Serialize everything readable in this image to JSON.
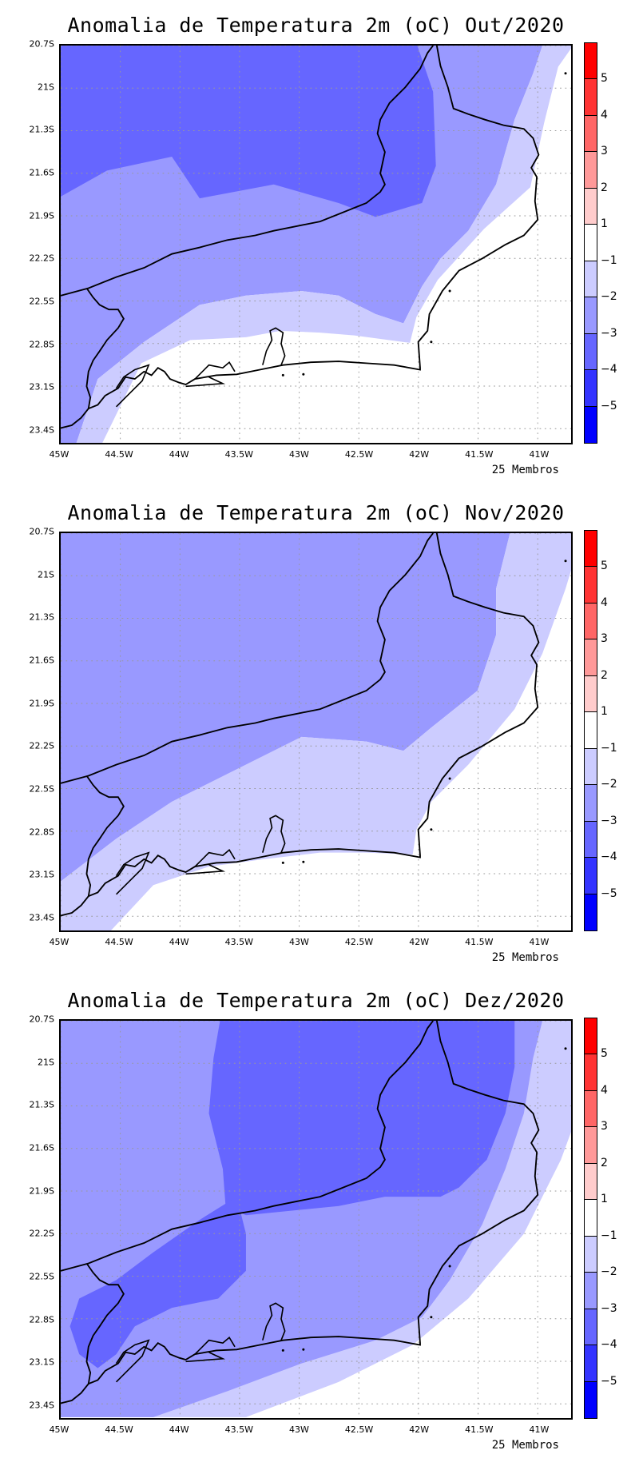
{
  "panels": [
    {
      "title": "Anomalia de Temperatura 2m (oC) Out/2020",
      "footer": "25 Membros",
      "month": "Out"
    },
    {
      "title": "Anomalia de Temperatura 2m (oC) Nov/2020",
      "footer": "25 Membros",
      "month": "Nov"
    },
    {
      "title": "Anomalia de Temperatura 2m (oC) Dez/2020",
      "footer": "25 Membros",
      "month": "Dez"
    }
  ],
  "axes": {
    "lon_ticks": [
      "45W",
      "44.5W",
      "44W",
      "43.5W",
      "43W",
      "42.5W",
      "42W",
      "41.5W",
      "41W"
    ],
    "lon_values": [
      -45,
      -44.5,
      -44,
      -43.5,
      -43,
      -42.5,
      -42,
      -41.5,
      -41
    ],
    "lat_ticks": [
      "20.7S",
      "21S",
      "21.3S",
      "21.6S",
      "21.9S",
      "22.2S",
      "22.5S",
      "22.8S",
      "23.1S",
      "23.4S"
    ],
    "lat_values": [
      -20.7,
      -21,
      -21.3,
      -21.6,
      -21.9,
      -22.2,
      -22.5,
      -22.8,
      -23.1,
      -23.4
    ],
    "lon_range": [
      -45,
      -40.72
    ],
    "lat_range": [
      -20.7,
      -23.5
    ]
  },
  "colorbar": {
    "labels": [
      "5",
      "4",
      "3",
      "2",
      "1",
      "−1",
      "−2",
      "−3",
      "−4",
      "−5"
    ],
    "colors": [
      "#ff0000",
      "#ff3333",
      "#ff6666",
      "#ff9999",
      "#ffcccc",
      "#ffffff",
      "#ccccff",
      "#9999ff",
      "#6666ff",
      "#3333ff",
      "#0000ff"
    ]
  }
}
